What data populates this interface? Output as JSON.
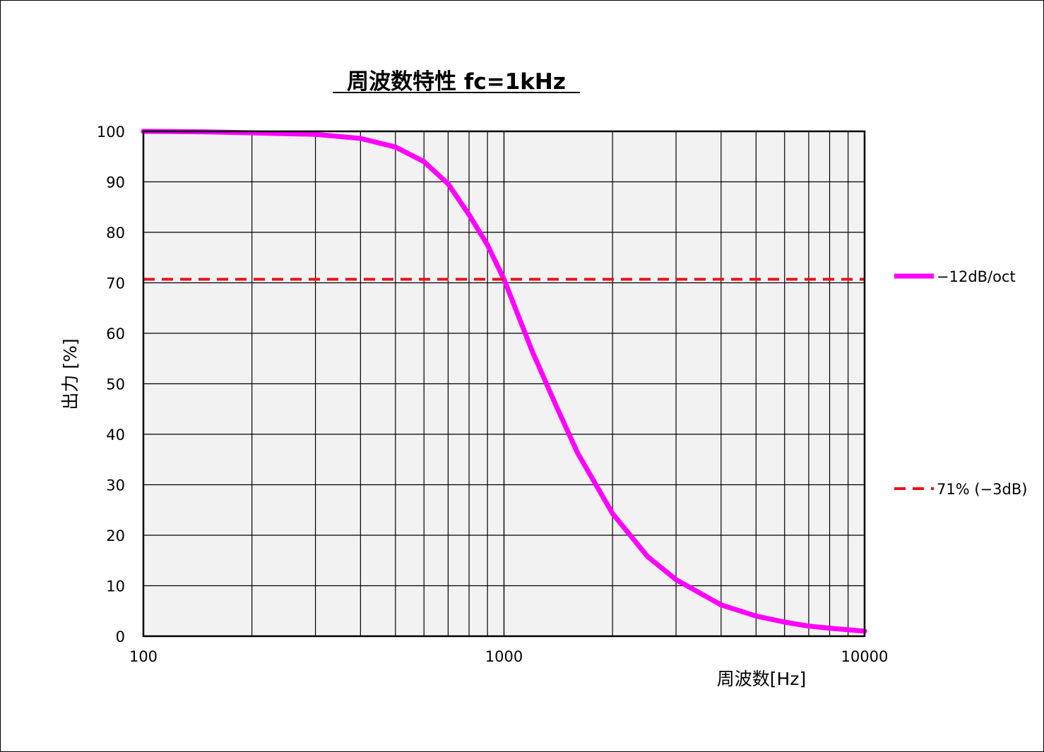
{
  "chart_data": {
    "type": "line",
    "title": "周波数特性  fc=1kHz",
    "xlabel": "周波数[Hz]",
    "ylabel": "出力 [%]",
    "x_scale": "log",
    "xlim": [
      100,
      10000
    ],
    "ylim": [
      0,
      100
    ],
    "x_tick_labels": [
      "100",
      "1000",
      "10000"
    ],
    "y_tick_labels": [
      "0",
      "10",
      "20",
      "30",
      "40",
      "50",
      "60",
      "70",
      "80",
      "90",
      "100"
    ],
    "grid": true,
    "plot_background": "#f2f2f2",
    "legend_position": "right",
    "series": [
      {
        "name": "−12dB/oct",
        "color": "#ff00ff",
        "style": "solid",
        "x": [
          100,
          150,
          200,
          300,
          400,
          500,
          600,
          700,
          800,
          900,
          1000,
          1200,
          1400,
          1600,
          2000,
          2500,
          3000,
          4000,
          5000,
          6000,
          7000,
          8000,
          10000
        ],
        "y": [
          100,
          99.9,
          99.7,
          99.4,
          98.6,
          96.9,
          94,
          89.6,
          83.5,
          77.5,
          70.7,
          56.3,
          45.4,
          36.3,
          24.3,
          15.8,
          11.2,
          6.2,
          4,
          2.8,
          2,
          1.6,
          1
        ]
      },
      {
        "name": "71% (−3dB)",
        "color": "#e8141a",
        "style": "dashed",
        "x": [
          100,
          10000
        ],
        "y": [
          70.7,
          70.7
        ]
      }
    ]
  }
}
